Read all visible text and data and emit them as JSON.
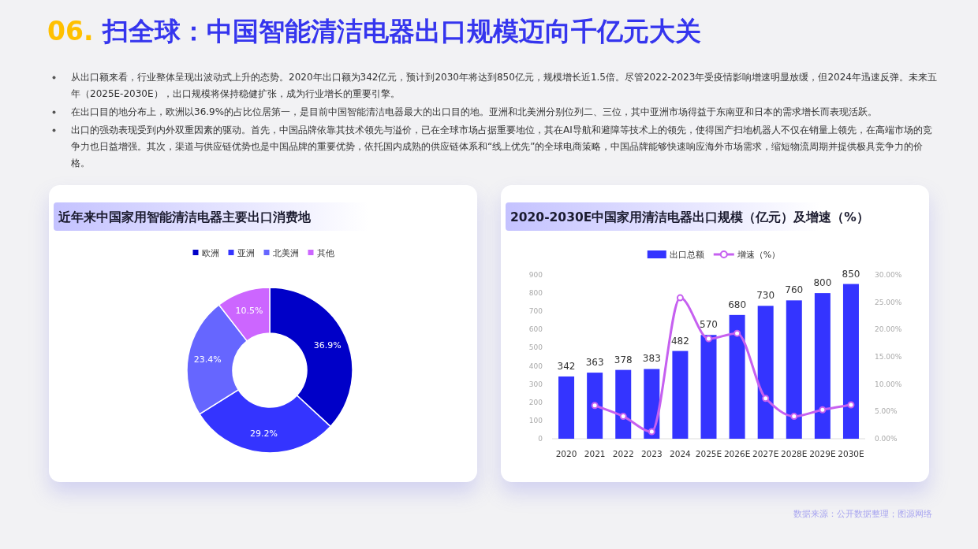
{
  "chart_data": [
    {
      "type": "other",
      "title": "06. 扫全球：中国智能清洁电器出口规模迈向千亿元大关",
      "annotations": [
        "从出口额来看，行业整体呈现出波动式上升的态势。2020年出口额为342亿元，预计到2030年将达到850亿元，规模增长近1.5倍。尽管2022-2023年受疫情影响增速明显放缓，但2024年迅速反弹。未来五年（2025E-2030E），出口规模将保持稳健扩张，成为行业增长的重要引擎。",
        "在出口目的地分布上，欧洲以36.9%的占比位居第一，是目前中国智能清洁电器最大的出口目的地。亚洲和北美洲分别位列二、三位，其中亚洲市场得益于东南亚和日本的需求增长而表现活跃。",
        "出口的强劲表现受到内外双重因素的驱动。首先，中国品牌依靠其技术领先与溢价，已在全球市场占据重要地位，其在AI导航和避障等技术上的领先，使得国产扫地机器人不仅在销量上领先，在高端市场的竞争力也日益增强。其次，渠道与供应链优势也是中国品牌的重要优势，依托国内成熟的供应链体系和“线上优先”的全球电商策略，中国品牌能够快速响应海外市场需求，缩短物流周期并提供极具竞争力的价格。",
        "数据来源：公开数据整理；图源网络"
      ]
    },
    {
      "type": "donut",
      "title": "近年来中国家用智能清洁电器主要出口消费地",
      "categories": [
        "欧洲",
        "亚洲",
        "北美洲",
        "其他"
      ],
      "values": [
        36.9,
        29.2,
        23.4,
        10.5
      ],
      "colors": [
        "#0000c8",
        "#3434ff",
        "#6666ff",
        "#cc66ff"
      ],
      "value_labels": [
        "36.9%",
        "29.2%",
        "23.4%",
        "10.5%"
      ],
      "legend": "top"
    },
    {
      "type": "bar",
      "title": "2020-2030E中国家用清洁电器出口规模（亿元）及增速（%）",
      "categories": [
        "2020",
        "2021",
        "2022",
        "2023",
        "2024",
        "2025E",
        "2026E",
        "2027E",
        "2028E",
        "2029E",
        "2030E"
      ],
      "series": [
        {
          "name": "出口总额",
          "type": "bar",
          "color": "#3434ff",
          "values": [
            342,
            363,
            378,
            383,
            482,
            570,
            680,
            730,
            760,
            800,
            850
          ],
          "value_labels": [
            "342",
            "363",
            "378",
            "383",
            "482",
            "570",
            "680",
            "730",
            "760",
            "800",
            "850"
          ]
        },
        {
          "name": "增速（%）",
          "type": "line",
          "axis": "y2",
          "color": "#c660f0",
          "marker": "circle",
          "values": [
            null,
            6.1,
            4.1,
            1.3,
            25.8,
            18.3,
            19.3,
            7.4,
            4.1,
            5.3,
            6.2
          ]
        }
      ],
      "ylim": [
        0,
        900
      ],
      "yticks": [
        0,
        100,
        200,
        300,
        400,
        500,
        600,
        700,
        800,
        900
      ],
      "y2lim": [
        0,
        30
      ],
      "y2ticks": [
        {
          "value": 0,
          "label": "0.00%"
        },
        {
          "value": 5,
          "label": "5.00%"
        },
        {
          "value": 10,
          "label": "10.00%"
        },
        {
          "value": 15,
          "label": "15.00%"
        },
        {
          "value": 20,
          "label": "20.00%"
        },
        {
          "value": 25,
          "label": "25.00%"
        },
        {
          "value": 30,
          "label": "30.00%"
        }
      ],
      "legend": "top"
    }
  ]
}
